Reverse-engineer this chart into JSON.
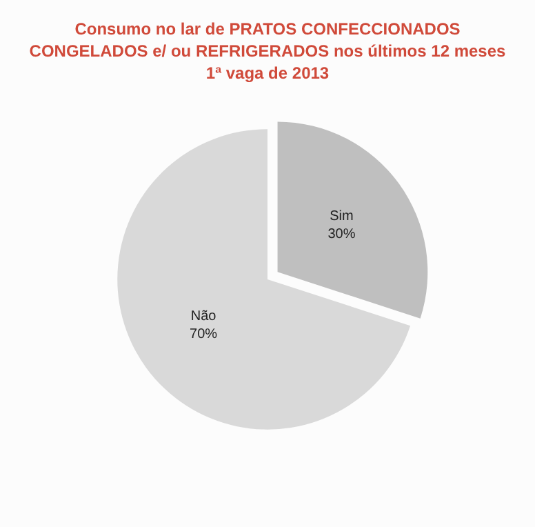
{
  "chart_data": {
    "type": "pie",
    "title": "Consumo no lar de PRATOS CONFECCIONADOS\nCONGELADOS e/ ou REFRIGERADOS nos últimos 12 meses\n1ª vaga de 2013",
    "categories": [
      "Sim",
      "Não"
    ],
    "values": [
      30,
      70
    ],
    "colors": [
      "#bfbfbf",
      "#d9d9d9"
    ],
    "value_labels": [
      "30%",
      "70%"
    ],
    "legend": false
  }
}
